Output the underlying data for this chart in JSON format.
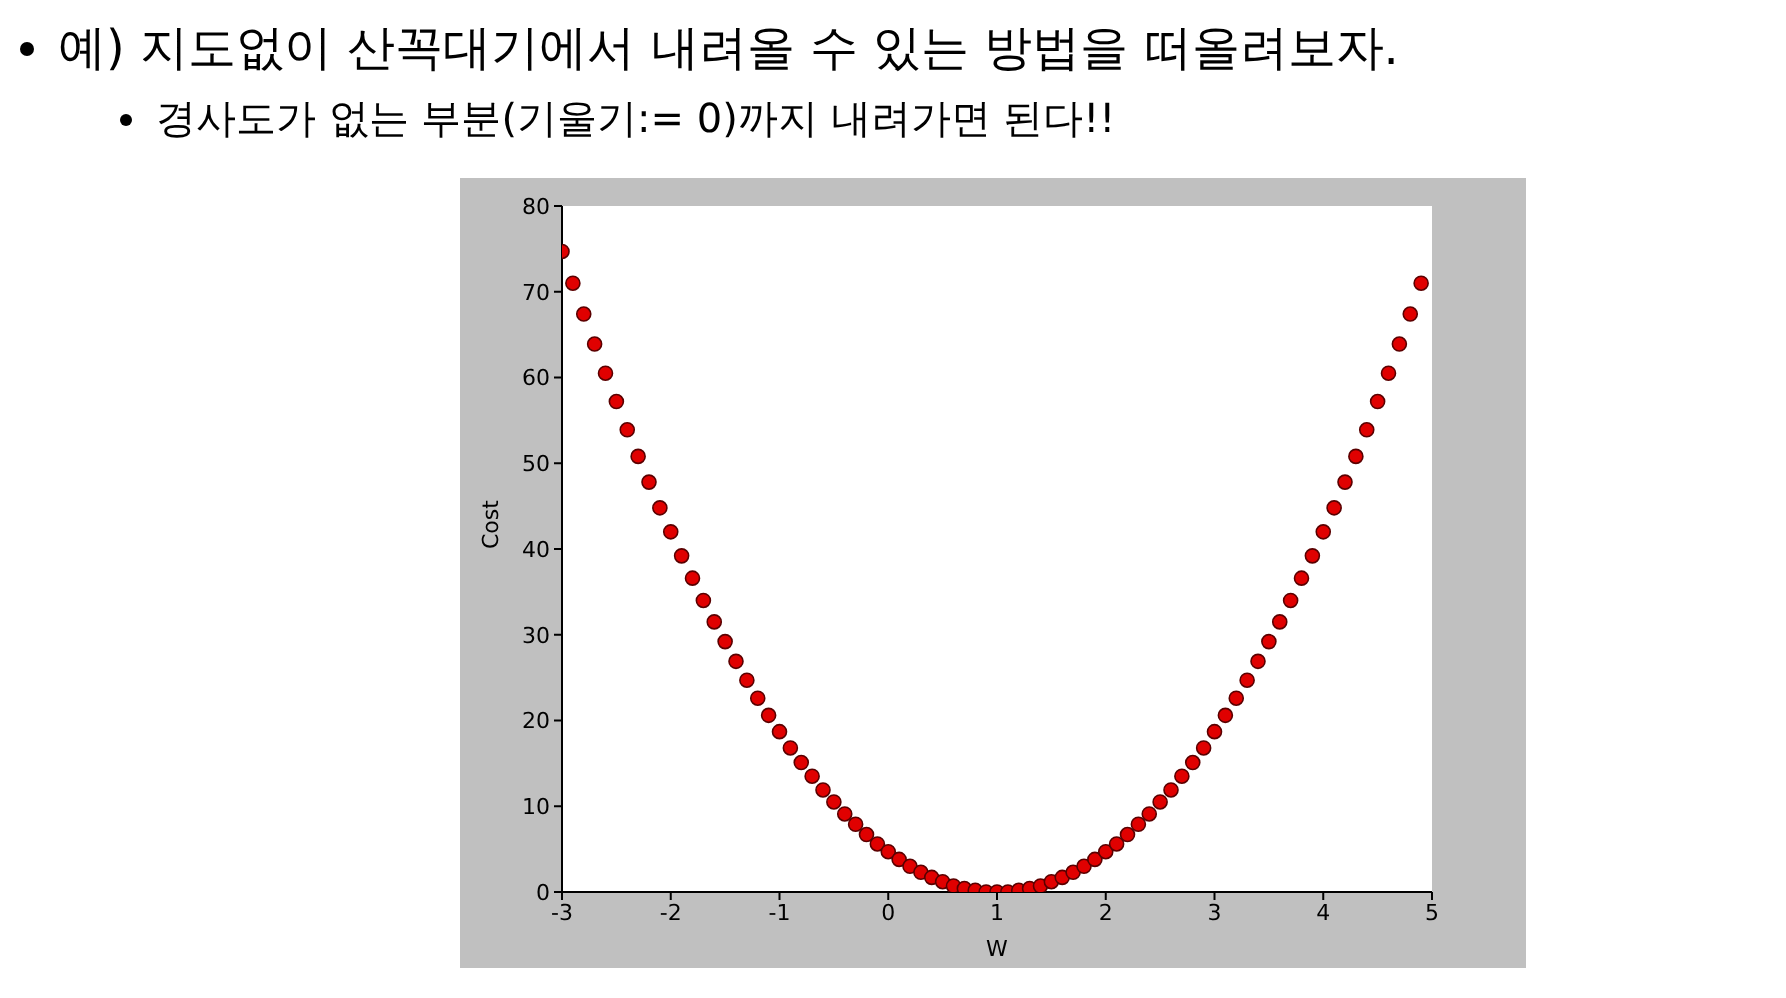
{
  "chart_data": {
    "type": "scatter",
    "title": "예) 지도없이 산꼭대기에서 내려올 수 있는 방법을 떠올려보자.",
    "subtitle": "경사도가 없는 부분(기울기:= 0)까지 내려가면 된다!!",
    "xlabel": "W",
    "ylabel": "Cost",
    "x": [
      -3,
      -2.9,
      -2.8,
      -2.7,
      -2.6,
      -2.5,
      -2.4,
      -2.3,
      -2.2,
      -2.1,
      -2,
      -1.9,
      -1.8,
      -1.7,
      -1.6,
      -1.5,
      -1.4,
      -1.3,
      -1.2,
      -1.1,
      -1,
      -0.9,
      -0.8,
      -0.7,
      -0.6,
      -0.5,
      -0.4,
      -0.3,
      -0.2,
      -0.1,
      0,
      0.1,
      0.2,
      0.3,
      0.4,
      0.5,
      0.6,
      0.7,
      0.8,
      0.9,
      1,
      1.1,
      1.2,
      1.3,
      1.4,
      1.5,
      1.6,
      1.7,
      1.8,
      1.9,
      2,
      2.1,
      2.2,
      2.3,
      2.4,
      2.5,
      2.6,
      2.7,
      2.8,
      2.9,
      3,
      3.1,
      3.2,
      3.3,
      3.4,
      3.5,
      3.6,
      3.7,
      3.8,
      3.9,
      4,
      4.1,
      4.2,
      4.3,
      4.4,
      4.5,
      4.6,
      4.7,
      4.8,
      4.9
    ],
    "series": [
      {
        "color": "#e00000",
        "values": [
          74.7,
          71.0,
          67.4,
          63.9,
          60.5,
          57.2,
          53.9,
          50.8,
          47.8,
          44.8,
          42.0,
          39.2,
          36.6,
          34.0,
          31.5,
          29.2,
          26.9,
          24.7,
          22.6,
          20.6,
          18.7,
          16.8,
          15.1,
          13.5,
          11.9,
          10.5,
          9.1,
          7.9,
          6.7,
          5.6,
          4.7,
          3.8,
          3.0,
          2.3,
          1.7,
          1.2,
          0.7,
          0.4,
          0.2,
          0.0,
          0,
          0.0,
          0.2,
          0.4,
          0.7,
          1.2,
          1.7,
          2.3,
          3.0,
          3.8,
          4.7,
          5.6,
          6.7,
          7.9,
          9.1,
          10.5,
          11.9,
          13.5,
          15.1,
          16.8,
          18.7,
          20.6,
          22.6,
          24.7,
          26.9,
          29.2,
          31.5,
          34.0,
          36.6,
          39.2,
          42.0,
          44.8,
          47.8,
          50.8,
          53.9,
          57.2,
          60.5,
          63.9,
          67.4,
          71.0
        ]
      }
    ],
    "xlim": [
      -3,
      5
    ],
    "xticks": [
      -3,
      -2,
      -1,
      0,
      1,
      2,
      3,
      4,
      5
    ],
    "ylim": [
      0,
      80
    ],
    "yticks": [
      0,
      10,
      20,
      30,
      40,
      50,
      60,
      70,
      80
    ],
    "marker": "circle",
    "grid": false,
    "legend": false
  }
}
